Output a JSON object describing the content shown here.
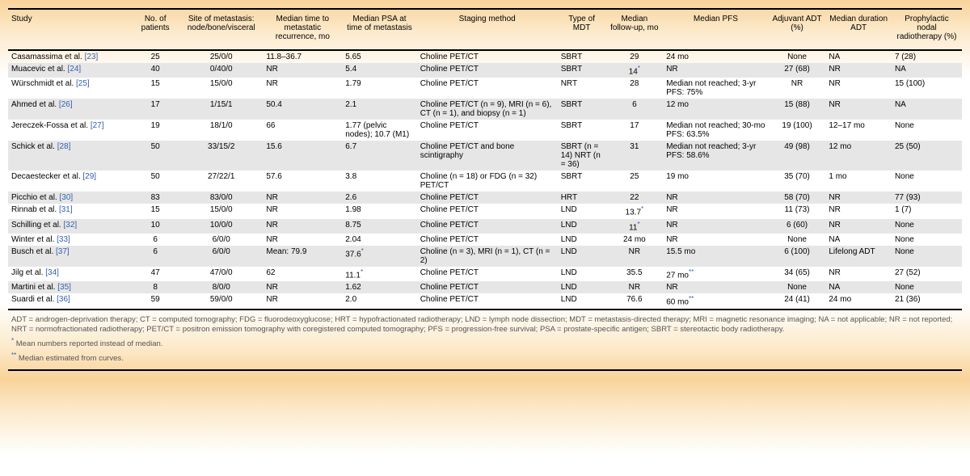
{
  "headers": [
    "Study",
    "No. of patients",
    "Site of metastasis: node/bone/visceral",
    "Median time to metastatic recurrence, mo",
    "Median PSA at time of metastasis",
    "Staging method",
    "Type of MDT",
    "Median follow-up, mo",
    "Median PFS",
    "Adjuvant ADT (%)",
    "Median duration ADT",
    "Prophylactic nodal radiotherapy (%)"
  ],
  "rows": [
    {
      "study": "Casamassima et al.",
      "ref": "[23]",
      "n": "25",
      "site": "25/0/0",
      "time": "11.8–36.7",
      "psa": "5.65",
      "psa_star": "",
      "staging": "Choline PET/CT",
      "mdt": "SBRT",
      "fu": "29",
      "fu_star": "",
      "pfs": "24 mo",
      "pfs_star": "",
      "adt": "None",
      "dur": "NA",
      "pnr": "7 (28)"
    },
    {
      "study": "Muacevic et al.",
      "ref": "[24]",
      "n": "40",
      "site": "0/40/0",
      "time": "NR",
      "psa": "5.4",
      "psa_star": "",
      "staging": "Choline PET/CT",
      "mdt": "SBRT",
      "fu": "14",
      "fu_star": "*",
      "pfs": "NR",
      "pfs_star": "",
      "adt": "27 (68)",
      "dur": "NR",
      "pnr": "NA"
    },
    {
      "study": "Würschmidt et al.",
      "ref": "[25]",
      "n": "15",
      "site": "15/0/0",
      "time": "NR",
      "psa": "1.79",
      "psa_star": "",
      "staging": "Choline PET/CT",
      "mdt": "NRT",
      "fu": "28",
      "fu_star": "",
      "pfs": "Median not reached; 3-yr PFS: 75%",
      "pfs_star": "",
      "adt": "NR",
      "dur": "NR",
      "pnr": "15 (100)"
    },
    {
      "study": "Ahmed et al.",
      "ref": "[26]",
      "n": "17",
      "site": "1/15/1",
      "time": "50.4",
      "psa": "2.1",
      "psa_star": "",
      "staging": "Choline PET/CT (n = 9), MRI (n = 6), CT (n = 1), and biopsy (n = 1)",
      "mdt": "SBRT",
      "fu": "6",
      "fu_star": "",
      "pfs": "12 mo",
      "pfs_star": "",
      "adt": "15 (88)",
      "dur": "NR",
      "pnr": "NA"
    },
    {
      "study": "Jereczek-Fossa et al.",
      "ref": "[27]",
      "n": "19",
      "site": "18/1/0",
      "time": "66",
      "psa": "1.77 (pelvic nodes); 10.7 (M1)",
      "psa_star": "",
      "staging": "Choline PET/CT",
      "mdt": "SBRT",
      "fu": "17",
      "fu_star": "",
      "pfs": "Median not reached; 30-mo PFS: 63.5%",
      "pfs_star": "",
      "adt": "19 (100)",
      "dur": "12–17 mo",
      "pnr": "None"
    },
    {
      "study": "Schick et al.",
      "ref": "[28]",
      "n": "50",
      "site": "33/15/2",
      "time": "15.6",
      "psa": "6.7",
      "psa_star": "",
      "staging": "Choline PET/CT and bone scintigraphy",
      "mdt": "SBRT (n = 14) NRT (n = 36)",
      "fu": "31",
      "fu_star": "",
      "pfs": "Median not reached; 3-yr PFS: 58.6%",
      "pfs_star": "",
      "adt": "49 (98)",
      "dur": "12 mo",
      "pnr": "25 (50)"
    },
    {
      "study": "Decaestecker et al.",
      "ref": "[29]",
      "n": "50",
      "site": "27/22/1",
      "time": "57.6",
      "psa": "3.8",
      "psa_star": "",
      "staging": "Choline (n = 18) or FDG (n = 32) PET/CT",
      "mdt": "SBRT",
      "fu": "25",
      "fu_star": "",
      "pfs": "19 mo",
      "pfs_star": "",
      "adt": "35 (70)",
      "dur": "1 mo",
      "pnr": "None"
    },
    {
      "study": "Picchio et al.",
      "ref": "[30]",
      "n": "83",
      "site": "83/0/0",
      "time": "NR",
      "psa": "2.6",
      "psa_star": "",
      "staging": "Choline PET/CT",
      "mdt": "HRT",
      "fu": "22",
      "fu_star": "",
      "pfs": "NR",
      "pfs_star": "",
      "adt": "58 (70)",
      "dur": "NR",
      "pnr": "77 (93)"
    },
    {
      "study": "Rinnab et al.",
      "ref": "[31]",
      "n": "15",
      "site": "15/0/0",
      "time": "NR",
      "psa": "1.98",
      "psa_star": "",
      "staging": "Choline PET/CT",
      "mdt": "LND",
      "fu": "13.7",
      "fu_star": "*",
      "pfs": "NR",
      "pfs_star": "",
      "adt": "11 (73)",
      "dur": "NR",
      "pnr": "1 (7)"
    },
    {
      "study": "Schilling et al.",
      "ref": "[32]",
      "n": "10",
      "site": "10/0/0",
      "time": "NR",
      "psa": "8.75",
      "psa_star": "",
      "staging": "Choline PET/CT",
      "mdt": "LND",
      "fu": "11",
      "fu_star": "*",
      "pfs": "NR",
      "pfs_star": "",
      "adt": "6 (60)",
      "dur": "NR",
      "pnr": "None"
    },
    {
      "study": "Winter et al.",
      "ref": "[33]",
      "n": "6",
      "site": "6/0/0",
      "time": "NR",
      "psa": "2.04",
      "psa_star": "",
      "staging": "Choline PET/CT",
      "mdt": "LND",
      "fu": "24 mo",
      "fu_star": "",
      "pfs": "NR",
      "pfs_star": "",
      "adt": "None",
      "dur": "NA",
      "pnr": "None"
    },
    {
      "study": "Busch et al.",
      "ref": "[37]",
      "n": "6",
      "site": "6/0/0",
      "time": "Mean: 79.9",
      "psa": "37.6",
      "psa_star": "*",
      "staging": "Choline (n = 3), MRI (n = 1), CT (n = 2)",
      "mdt": "LND",
      "fu": "NR",
      "fu_star": "",
      "pfs": "15.5 mo",
      "pfs_star": "",
      "adt": "6 (100)",
      "dur": "Lifelong ADT",
      "pnr": "None"
    },
    {
      "study": "Jilg et al.",
      "ref": "[34]",
      "n": "47",
      "site": "47/0/0",
      "time": "62",
      "psa": "11.1",
      "psa_star": "*",
      "staging": "Choline PET/CT",
      "mdt": "LND",
      "fu": "35.5",
      "fu_star": "",
      "pfs": "27 mo",
      "pfs_star": "**",
      "adt": "34 (65)",
      "dur": "NR",
      "pnr": "27 (52)"
    },
    {
      "study": "Martini et al.",
      "ref": "[35]",
      "n": "8",
      "site": "8/0/0",
      "time": "NR",
      "psa": "1.62",
      "psa_star": "",
      "staging": "Choline PET/CT",
      "mdt": "LND",
      "fu": "NR",
      "fu_star": "",
      "pfs": "NR",
      "pfs_star": "",
      "adt": "None",
      "dur": "NA",
      "pnr": "None"
    },
    {
      "study": "Suardi et al.",
      "ref": "[36]",
      "n": "59",
      "site": "59/0/0",
      "time": "NR",
      "psa": "2.0",
      "psa_star": "",
      "staging": "Choline PET/CT",
      "mdt": "LND",
      "fu": "76.6",
      "fu_star": "",
      "pfs": "60 mo",
      "pfs_star": "**",
      "adt": "24 (41)",
      "dur": "24 mo",
      "pnr": "21 (36)"
    }
  ],
  "footnotes": {
    "abbrev": "ADT = androgen-deprivation therapy;  CT = computed tomography;  FDG = fluorodeoxyglucose;  HRT = hypofractionated radiotherapy;  LND = lymph node dissection;  MDT = metastasis-directed therapy;  MRI = magnetic resonance imaging;  NA = not applicable;  NR = not reported;  NRT = normofractionated radiotherapy;  PET/CT = positron emission tomography with coregistered computed tomography;  PFS = progression-free survival;  PSA = prostate-specific antigen;  SBRT = stereotactic body radiotherapy.",
    "star1": "Mean numbers reported instead of median.",
    "star2": "Median estimated from curves."
  },
  "colors": {
    "ref_link": "#355fad",
    "row_even": "#e6e6e6",
    "grad_edge": "#f9d39a",
    "grad_mid": "#fce9c9"
  }
}
